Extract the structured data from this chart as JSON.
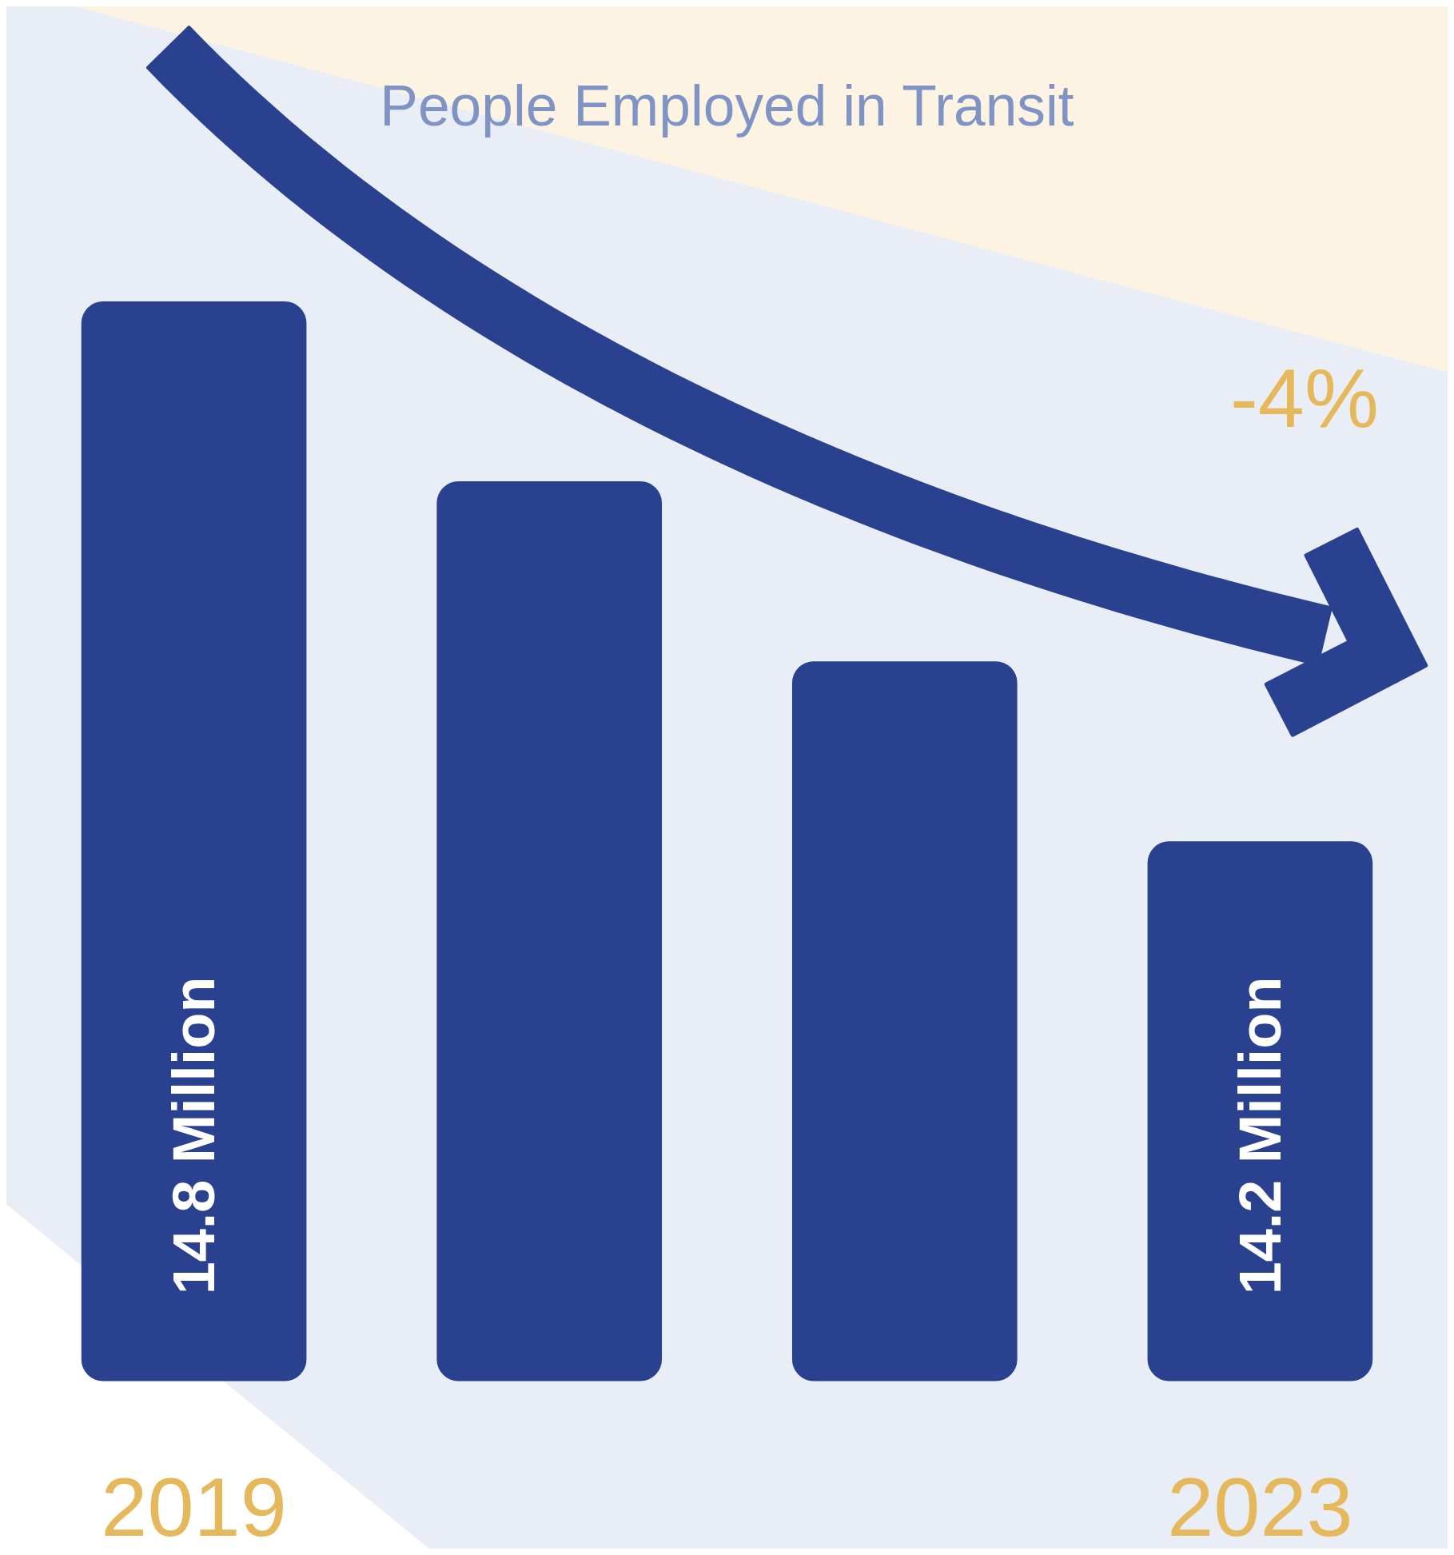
{
  "chart_data": {
    "type": "bar",
    "title": "People Employed in Transit",
    "categories": [
      "2019",
      null,
      null,
      "2023"
    ],
    "values": [
      14.8,
      14.6,
      14.4,
      14.2
    ],
    "ylim": [
      13.6,
      14.8
    ],
    "tick_labels": "x",
    "color": "#29418f",
    "value_labels": [
      "14.8 Million",
      null,
      null,
      "14.2 Million"
    ],
    "annotations": [
      "-4%"
    ]
  }
}
